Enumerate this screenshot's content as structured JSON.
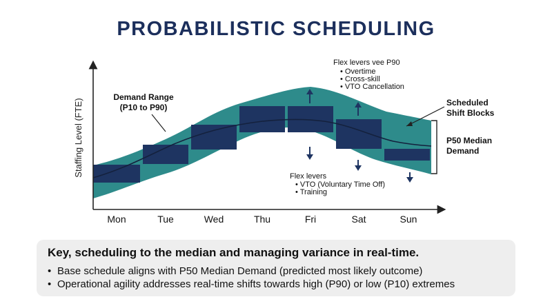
{
  "title": "PROBABILISTIC SCHEDULING",
  "y_axis_label": "Staffing Level (FTE)",
  "days": [
    "Mon",
    "Tue",
    "Wed",
    "Thu",
    "Fri",
    "Sat",
    "Sun"
  ],
  "annotations": {
    "demand_range_line1": "Demand Range",
    "demand_range_line2": "(P10 to P90)",
    "scheduled_line1": "Scheduled",
    "scheduled_line2": "Shift Blocks",
    "p50_line1": "P50 Median",
    "p50_line2": "Demand"
  },
  "flex_up": {
    "title": "Flex levers vee P90",
    "items": [
      "Overtime",
      "Cross-skill",
      "VTO Cancellation"
    ]
  },
  "flex_down": {
    "title": "Flex levers",
    "items": [
      "VTO (Voluntary Time Off)",
      "Training"
    ]
  },
  "key": {
    "heading": "Key, scheduling to the median and managing variance in real-time.",
    "bullets": [
      "Base schedule aligns with P50 Median Demand (predicted most likely outcome)",
      "Operational agility addresses real-time shifts towards high (P90) or low (P10) extremes"
    ]
  },
  "colors": {
    "band": "#2e8b8b",
    "block": "#1e3461",
    "axis": "#222222",
    "title": "#1c2f5c"
  }
}
